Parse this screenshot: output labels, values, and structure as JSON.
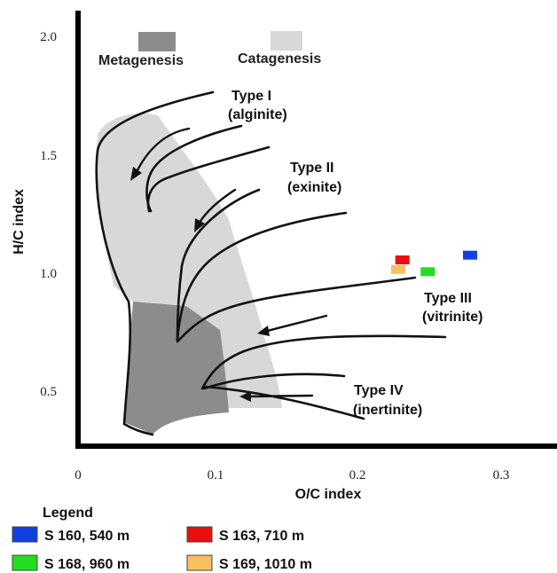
{
  "chart_data": {
    "type": "scatter",
    "title": "",
    "xlabel": "O/C index",
    "ylabel": "H/C index",
    "xlim": [
      0,
      0.33
    ],
    "ylim": [
      0.25,
      2.1
    ],
    "x_ticks": [
      "0",
      "0.1",
      "0.2",
      "0.3"
    ],
    "x_tick_values": [
      0,
      0.1,
      0.2,
      0.3
    ],
    "y_ticks": [
      "0.5",
      "1.0",
      "1.5",
      "2.0"
    ],
    "y_tick_values": [
      0.5,
      1.0,
      1.5,
      2.0
    ],
    "zones": [
      {
        "label": "Metagenesis",
        "color": "#8c8c8c"
      },
      {
        "label": "Catagenesis",
        "color": "#d8d8d8"
      }
    ],
    "type_labels": [
      {
        "line1": "Type I",
        "line2": "(alginite)"
      },
      {
        "line1": "Type II",
        "line2": "(exinite)"
      },
      {
        "line1": "Type III",
        "line2": "(vitrinite)"
      },
      {
        "line1": "Type IV",
        "line2": "(inertinite)"
      }
    ],
    "legend_title": "Legend",
    "series": [
      {
        "name": "S 160, 540 m",
        "x": 0.278,
        "y": 1.08,
        "color": "#1040e0"
      },
      {
        "name": "S 163, 710 m",
        "x": 0.23,
        "y": 1.06,
        "color": "#e81010"
      },
      {
        "name": "S 168, 960 m",
        "x": 0.248,
        "y": 1.01,
        "color": "#22dd22"
      },
      {
        "name": "S 169, 1010 m",
        "x": 0.227,
        "y": 1.02,
        "color": "#f7c060"
      }
    ]
  }
}
